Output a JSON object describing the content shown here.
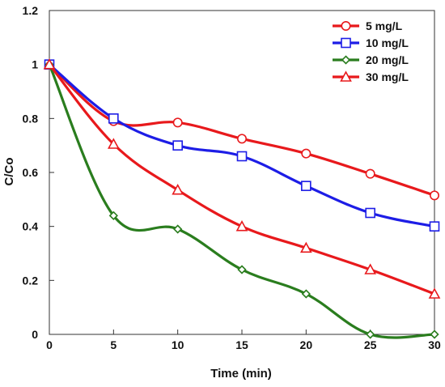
{
  "chart_data": {
    "type": "line",
    "xlabel": "Time (min)",
    "ylabel": "C/Co",
    "xlim": [
      0,
      30
    ],
    "ylim": [
      0,
      1.2
    ],
    "xticks": [
      "0",
      "5",
      "10",
      "15",
      "20",
      "25",
      "30"
    ],
    "yticks": [
      "0",
      "0.2",
      "0.4",
      "0.6",
      "0.8",
      "1",
      "1.2"
    ],
    "grid": false,
    "legend_position": "top-right",
    "x": [
      0,
      5,
      10,
      15,
      20,
      25,
      30
    ],
    "series": [
      {
        "name": "5 mg/L",
        "color": "#e8191c",
        "marker": "circle",
        "values": [
          1.0,
          0.79,
          0.785,
          0.725,
          0.67,
          0.595,
          0.515
        ]
      },
      {
        "name": "10 mg/L",
        "color": "#1d1de6",
        "marker": "square",
        "values": [
          1.0,
          0.8,
          0.7,
          0.66,
          0.55,
          0.45,
          0.4
        ]
      },
      {
        "name": "20 mg/L",
        "color": "#2a7d1e",
        "marker": "diamond",
        "values": [
          1.0,
          0.44,
          0.39,
          0.24,
          0.15,
          0.0,
          0.0
        ]
      },
      {
        "name": "30 mg/L",
        "color": "#e8191c",
        "marker": "triangle",
        "values": [
          1.0,
          0.705,
          0.535,
          0.4,
          0.32,
          0.24,
          0.15
        ]
      }
    ]
  }
}
